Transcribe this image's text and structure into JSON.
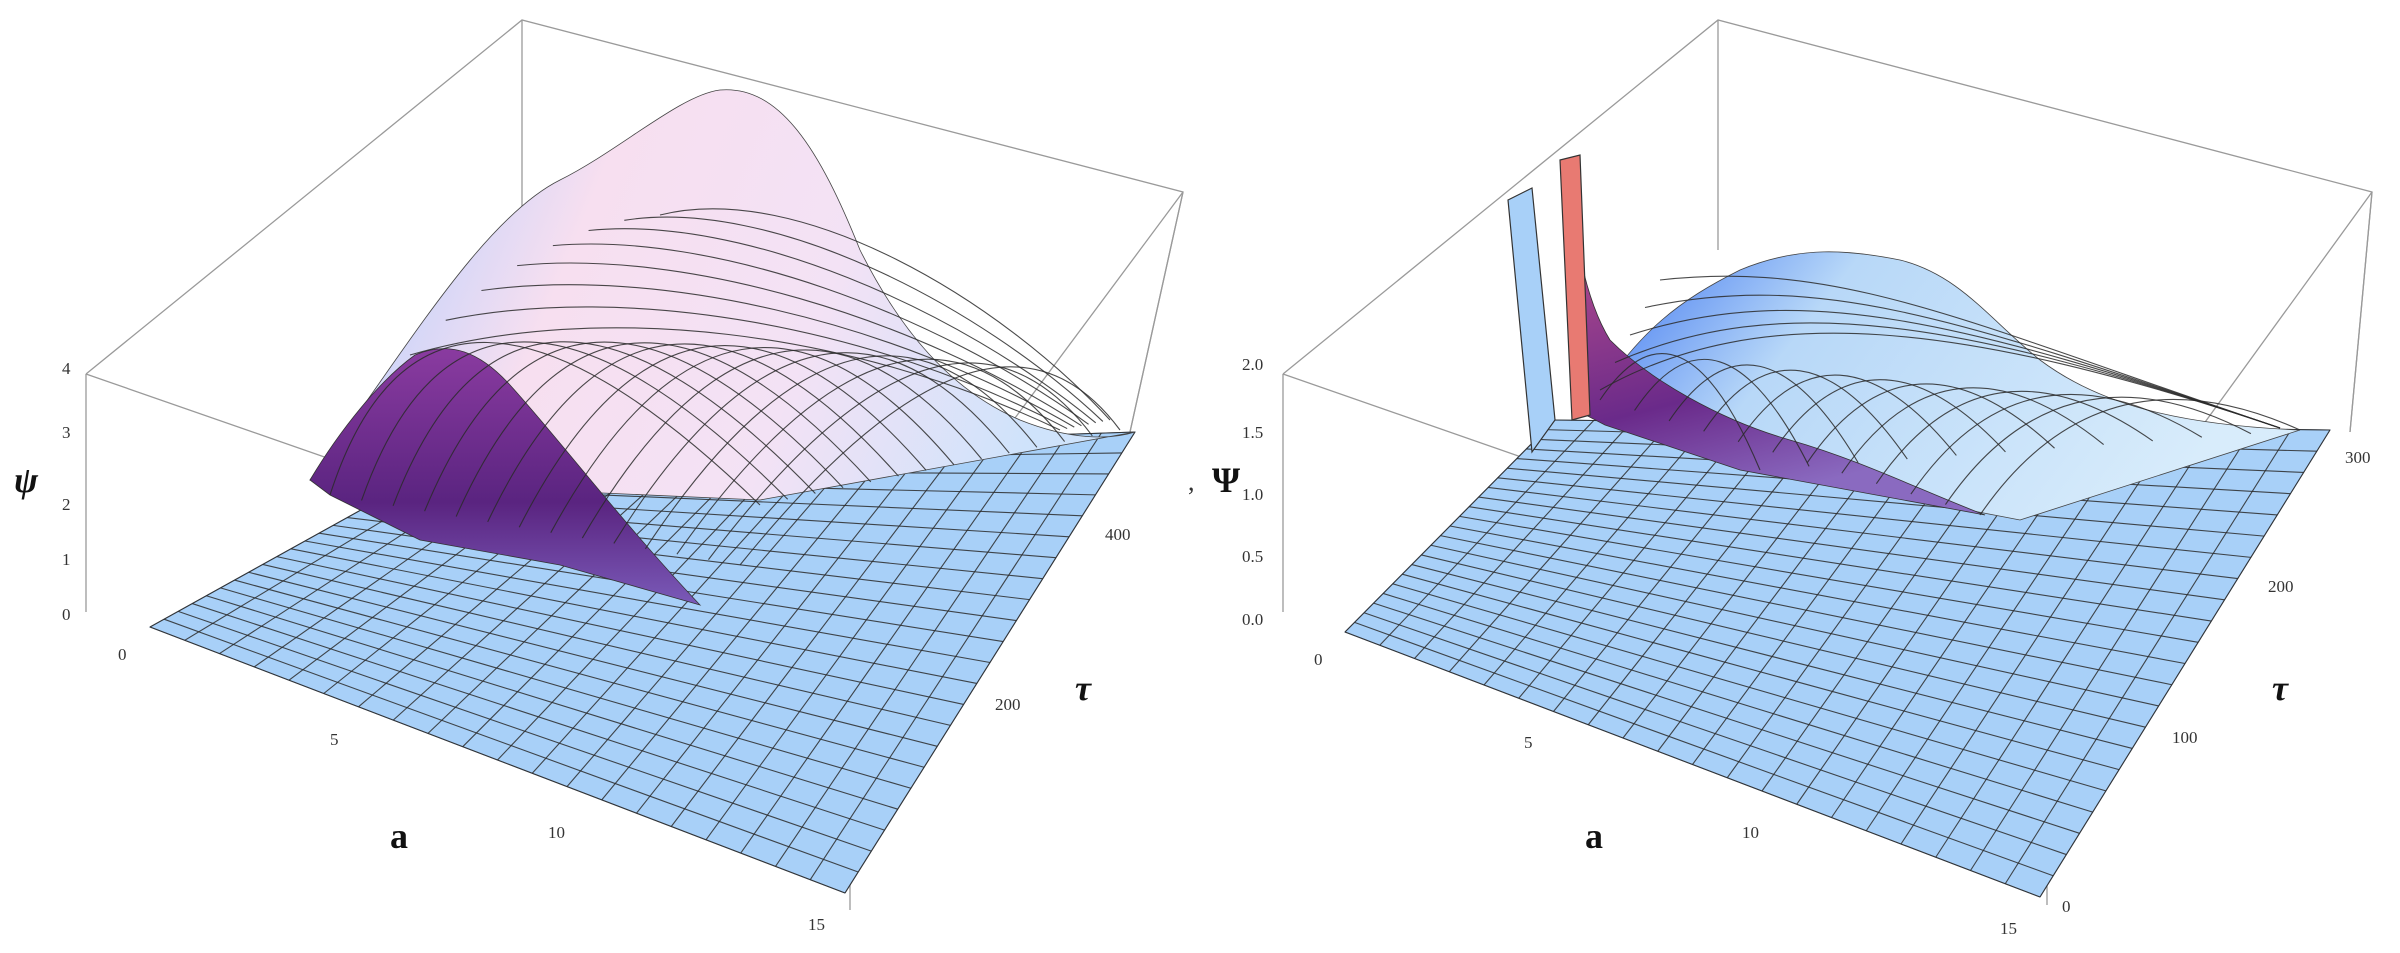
{
  "chart_data": [
    {
      "type": "surface3d",
      "title": "",
      "zlabel": "ψ",
      "xlabel": "a",
      "ylabel": "τ",
      "x_ticks": [
        "0",
        "5",
        "10",
        "15"
      ],
      "y_ticks": [
        "200",
        "400"
      ],
      "z_ticks": [
        "0",
        "1",
        "2",
        "3",
        "4"
      ],
      "xlim": [
        0,
        15
      ],
      "ylim": [
        0,
        500
      ],
      "zlim": [
        0,
        4
      ],
      "peak": {
        "a": 0,
        "tau": 420,
        "z": 4.1
      },
      "colors": {
        "floor": "#a8d0f8",
        "ridge_low": "#6a2a8a",
        "ridge_mid": "#f6dcee",
        "ridge_edge": "#4a74f0"
      }
    },
    {
      "type": "surface3d",
      "title": "",
      "zlabel": "Ψ",
      "xlabel": "a",
      "ylabel": "τ",
      "x_ticks": [
        "0",
        "5",
        "10",
        "15"
      ],
      "y_ticks": [
        "0",
        "100",
        "200",
        "300"
      ],
      "z_ticks": [
        "0.0",
        "0.5",
        "1.0",
        "1.5",
        "2.0"
      ],
      "xlim": [
        0,
        15
      ],
      "ylim": [
        0,
        320
      ],
      "zlim": [
        0,
        2
      ],
      "peak": {
        "a": 0,
        "tau": 260,
        "z": 1.25
      },
      "spike": {
        "a": 0,
        "tau": 60,
        "z": 2.3
      },
      "colors": {
        "floor": "#a8d0f8",
        "ridge_low": "#6a2a8a",
        "ridge_mid": "#d8ecfb",
        "ridge_edge": "#4a86f0",
        "spike": "#e87a72"
      }
    }
  ],
  "separator": ","
}
